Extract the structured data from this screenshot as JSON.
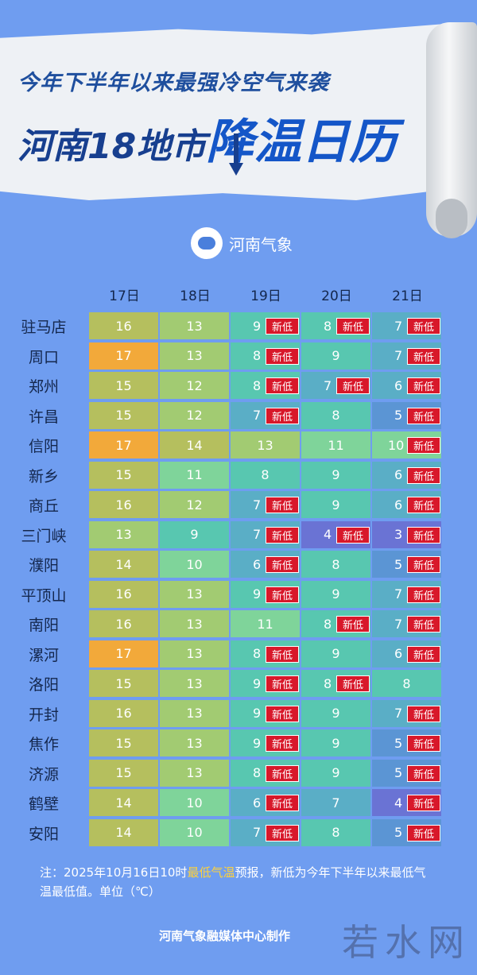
{
  "header": {
    "line1": "今年下半年以来最强冷空气来袭",
    "line2_prefix": "河南18地市",
    "line2_highlight": "降温日历"
  },
  "logo": {
    "icon": "hn-weather-logo-icon",
    "text": "河南气象"
  },
  "days": [
    "17日",
    "18日",
    "19日",
    "20日",
    "21日"
  ],
  "badge_label": "新低",
  "colors": {
    "orange": "#f2a93a",
    "yellowgreen": "#b5bf5e",
    "green": "#7fd49a",
    "teal": "#58c7b0",
    "blue": "#5b95d4",
    "purple": "#6a73d4",
    "badge": "#d8182a"
  },
  "rows": [
    {
      "city": "驻马店",
      "temps": [
        16,
        13,
        9,
        8,
        7
      ],
      "new_low": [
        false,
        false,
        true,
        true,
        true
      ]
    },
    {
      "city": "周口",
      "temps": [
        17,
        13,
        8,
        9,
        7
      ],
      "new_low": [
        false,
        false,
        true,
        false,
        true
      ]
    },
    {
      "city": "郑州",
      "temps": [
        15,
        12,
        8,
        7,
        6
      ],
      "new_low": [
        false,
        false,
        true,
        true,
        true
      ]
    },
    {
      "city": "许昌",
      "temps": [
        15,
        12,
        7,
        8,
        5
      ],
      "new_low": [
        false,
        false,
        true,
        false,
        true
      ]
    },
    {
      "city": "信阳",
      "temps": [
        17,
        14,
        13,
        11,
        10
      ],
      "new_low": [
        false,
        false,
        false,
        false,
        true
      ]
    },
    {
      "city": "新乡",
      "temps": [
        15,
        11,
        8,
        9,
        6
      ],
      "new_low": [
        false,
        false,
        false,
        false,
        true
      ]
    },
    {
      "city": "商丘",
      "temps": [
        16,
        12,
        7,
        9,
        6
      ],
      "new_low": [
        false,
        false,
        true,
        false,
        true
      ]
    },
    {
      "city": "三门峡",
      "temps": [
        13,
        9,
        7,
        4,
        3
      ],
      "new_low": [
        false,
        false,
        true,
        true,
        true
      ]
    },
    {
      "city": "濮阳",
      "temps": [
        14,
        10,
        6,
        8,
        5
      ],
      "new_low": [
        false,
        false,
        true,
        false,
        true
      ]
    },
    {
      "city": "平顶山",
      "temps": [
        16,
        13,
        9,
        9,
        7
      ],
      "new_low": [
        false,
        false,
        true,
        false,
        true
      ]
    },
    {
      "city": "南阳",
      "temps": [
        16,
        13,
        11,
        8,
        7
      ],
      "new_low": [
        false,
        false,
        false,
        true,
        true
      ]
    },
    {
      "city": "漯河",
      "temps": [
        17,
        13,
        8,
        9,
        6
      ],
      "new_low": [
        false,
        false,
        true,
        false,
        true
      ]
    },
    {
      "city": "洛阳",
      "temps": [
        15,
        13,
        9,
        8,
        8
      ],
      "new_low": [
        false,
        false,
        true,
        true,
        false
      ]
    },
    {
      "city": "开封",
      "temps": [
        16,
        13,
        9,
        9,
        7
      ],
      "new_low": [
        false,
        false,
        true,
        false,
        true
      ]
    },
    {
      "city": "焦作",
      "temps": [
        15,
        13,
        9,
        9,
        5
      ],
      "new_low": [
        false,
        false,
        true,
        false,
        true
      ]
    },
    {
      "city": "济源",
      "temps": [
        15,
        13,
        8,
        9,
        5
      ],
      "new_low": [
        false,
        false,
        true,
        false,
        true
      ]
    },
    {
      "city": "鹤壁",
      "temps": [
        14,
        10,
        6,
        7,
        4
      ],
      "new_low": [
        false,
        false,
        true,
        false,
        true
      ]
    },
    {
      "city": "安阳",
      "temps": [
        14,
        10,
        7,
        8,
        5
      ],
      "new_low": [
        false,
        false,
        true,
        false,
        true
      ]
    }
  ],
  "note": {
    "prefix": "注：2025年10月16日10时",
    "highlight": "最低气温",
    "suffix": "预报，新低为今年下半年以来最低气温最低值。单位（℃）"
  },
  "footer": "河南气象融媒体中心制作",
  "watermark": "若水网"
}
